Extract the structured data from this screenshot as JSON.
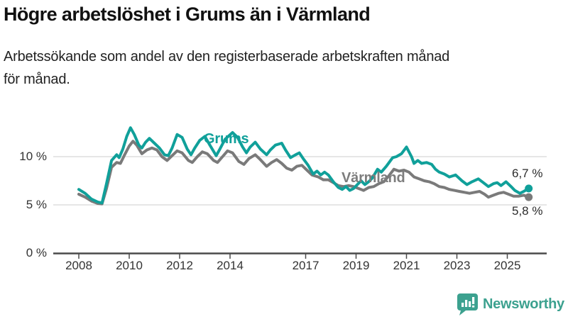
{
  "header": {
    "title": "Högre arbetslöshet i Grums än i Värmland",
    "subtitle_lines": [
      "Arbetssökande som andel av den registerbaserade arbetskraften månad",
      "för månad."
    ]
  },
  "chart_data": {
    "type": "line",
    "unit": "%",
    "grid": "horizontal",
    "legend_position": "inline-labels",
    "xlim": [
      2007.0,
      2026.6
    ],
    "ylim": [
      0,
      14.2
    ],
    "x_ticks": [
      2008,
      2010,
      2012,
      2014,
      2017,
      2019,
      2021,
      2023,
      2025
    ],
    "y_ticks": [
      {
        "value": 10,
        "label": "10 %"
      },
      {
        "value": 5,
        "label": "5 %"
      },
      {
        "value": 0,
        "label": "0 %"
      }
    ],
    "series": [
      {
        "name": "Värmland",
        "color": "#7a7a7a",
        "end_value": 5.8,
        "end_label": "5,8 %",
        "points": [
          [
            2008.0,
            6.1
          ],
          [
            2008.25,
            5.8
          ],
          [
            2008.5,
            5.4
          ],
          [
            2008.75,
            5.15
          ],
          [
            2008.92,
            5.1
          ],
          [
            2009.1,
            6.7
          ],
          [
            2009.3,
            8.9
          ],
          [
            2009.5,
            9.4
          ],
          [
            2009.65,
            9.3
          ],
          [
            2009.8,
            10.1
          ],
          [
            2010.0,
            11.1
          ],
          [
            2010.15,
            11.6
          ],
          [
            2010.3,
            11.2
          ],
          [
            2010.5,
            10.3
          ],
          [
            2010.7,
            10.7
          ],
          [
            2010.9,
            10.9
          ],
          [
            2011.1,
            10.7
          ],
          [
            2011.3,
            10.0
          ],
          [
            2011.5,
            9.6
          ],
          [
            2011.7,
            10.1
          ],
          [
            2011.9,
            10.6
          ],
          [
            2012.1,
            10.4
          ],
          [
            2012.35,
            9.6
          ],
          [
            2012.5,
            9.4
          ],
          [
            2012.7,
            10.0
          ],
          [
            2012.9,
            10.5
          ],
          [
            2013.1,
            10.3
          ],
          [
            2013.35,
            9.6
          ],
          [
            2013.5,
            9.4
          ],
          [
            2013.7,
            10.0
          ],
          [
            2013.9,
            10.6
          ],
          [
            2014.1,
            10.4
          ],
          [
            2014.35,
            9.5
          ],
          [
            2014.55,
            9.2
          ],
          [
            2014.75,
            9.8
          ],
          [
            2015.0,
            10.2
          ],
          [
            2015.2,
            9.7
          ],
          [
            2015.45,
            9.0
          ],
          [
            2015.65,
            9.4
          ],
          [
            2015.85,
            9.7
          ],
          [
            2016.05,
            9.3
          ],
          [
            2016.25,
            8.8
          ],
          [
            2016.45,
            8.6
          ],
          [
            2016.65,
            9.0
          ],
          [
            2016.85,
            9.1
          ],
          [
            2017.05,
            8.6
          ],
          [
            2017.25,
            8.1
          ],
          [
            2017.5,
            7.9
          ],
          [
            2017.7,
            7.6
          ],
          [
            2017.9,
            7.6
          ],
          [
            2018.1,
            7.3
          ],
          [
            2018.3,
            7.0
          ],
          [
            2018.5,
            6.9
          ],
          [
            2018.7,
            7.0
          ],
          [
            2018.9,
            6.9
          ],
          [
            2019.1,
            6.7
          ],
          [
            2019.3,
            6.5
          ],
          [
            2019.5,
            6.8
          ],
          [
            2019.7,
            6.9
          ],
          [
            2019.9,
            7.2
          ],
          [
            2020.1,
            7.4
          ],
          [
            2020.3,
            8.0
          ],
          [
            2020.5,
            8.7
          ],
          [
            2020.7,
            8.5
          ],
          [
            2020.9,
            8.6
          ],
          [
            2021.1,
            8.4
          ],
          [
            2021.3,
            7.9
          ],
          [
            2021.5,
            7.7
          ],
          [
            2021.7,
            7.5
          ],
          [
            2021.9,
            7.4
          ],
          [
            2022.1,
            7.2
          ],
          [
            2022.3,
            6.9
          ],
          [
            2022.5,
            6.8
          ],
          [
            2022.7,
            6.6
          ],
          [
            2022.9,
            6.5
          ],
          [
            2023.1,
            6.4
          ],
          [
            2023.3,
            6.3
          ],
          [
            2023.5,
            6.2
          ],
          [
            2023.7,
            6.3
          ],
          [
            2023.9,
            6.4
          ],
          [
            2024.1,
            6.1
          ],
          [
            2024.25,
            5.8
          ],
          [
            2024.45,
            6.0
          ],
          [
            2024.65,
            6.2
          ],
          [
            2024.85,
            6.3
          ],
          [
            2025.05,
            6.1
          ],
          [
            2025.25,
            5.9
          ],
          [
            2025.45,
            5.9
          ],
          [
            2025.65,
            6.0
          ],
          [
            2025.85,
            5.8
          ]
        ]
      },
      {
        "name": "Grums",
        "color": "#10a09a",
        "end_value": 6.7,
        "end_label": "6,7 %",
        "points": [
          [
            2008.0,
            6.6
          ],
          [
            2008.25,
            6.2
          ],
          [
            2008.5,
            5.6
          ],
          [
            2008.75,
            5.3
          ],
          [
            2008.92,
            5.2
          ],
          [
            2009.1,
            7.2
          ],
          [
            2009.3,
            9.6
          ],
          [
            2009.5,
            10.2
          ],
          [
            2009.6,
            9.9
          ],
          [
            2009.75,
            10.8
          ],
          [
            2009.9,
            12.1
          ],
          [
            2010.05,
            13.0
          ],
          [
            2010.2,
            12.3
          ],
          [
            2010.38,
            11.2
          ],
          [
            2010.5,
            10.9
          ],
          [
            2010.65,
            11.5
          ],
          [
            2010.8,
            11.9
          ],
          [
            2011.0,
            11.4
          ],
          [
            2011.2,
            10.9
          ],
          [
            2011.4,
            10.2
          ],
          [
            2011.55,
            10.1
          ],
          [
            2011.7,
            10.9
          ],
          [
            2011.9,
            12.3
          ],
          [
            2012.1,
            12.0
          ],
          [
            2012.3,
            10.8
          ],
          [
            2012.45,
            10.2
          ],
          [
            2012.6,
            10.9
          ],
          [
            2012.8,
            11.7
          ],
          [
            2013.0,
            12.1
          ],
          [
            2013.2,
            11.2
          ],
          [
            2013.45,
            10.1
          ],
          [
            2013.6,
            10.8
          ],
          [
            2013.8,
            11.8
          ],
          [
            2014.1,
            12.5
          ],
          [
            2014.3,
            12.0
          ],
          [
            2014.5,
            11.0
          ],
          [
            2014.65,
            10.4
          ],
          [
            2014.8,
            11.0
          ],
          [
            2015.0,
            11.5
          ],
          [
            2015.2,
            10.8
          ],
          [
            2015.45,
            10.2
          ],
          [
            2015.6,
            10.7
          ],
          [
            2015.8,
            11.2
          ],
          [
            2016.05,
            11.4
          ],
          [
            2016.2,
            10.7
          ],
          [
            2016.4,
            9.9
          ],
          [
            2016.6,
            10.2
          ],
          [
            2016.75,
            10.4
          ],
          [
            2016.9,
            9.8
          ],
          [
            2017.1,
            9.1
          ],
          [
            2017.3,
            8.2
          ],
          [
            2017.45,
            8.5
          ],
          [
            2017.6,
            8.1
          ],
          [
            2017.75,
            8.4
          ],
          [
            2017.9,
            8.1
          ],
          [
            2018.1,
            7.4
          ],
          [
            2018.3,
            6.8
          ],
          [
            2018.45,
            6.6
          ],
          [
            2018.6,
            6.9
          ],
          [
            2018.75,
            6.5
          ],
          [
            2018.9,
            6.7
          ],
          [
            2019.05,
            7.1
          ],
          [
            2019.2,
            7.5
          ],
          [
            2019.35,
            7.1
          ],
          [
            2019.5,
            7.4
          ],
          [
            2019.65,
            7.8
          ],
          [
            2019.85,
            8.7
          ],
          [
            2020.0,
            8.4
          ],
          [
            2020.2,
            9.0
          ],
          [
            2020.45,
            9.9
          ],
          [
            2020.6,
            10.0
          ],
          [
            2020.8,
            10.3
          ],
          [
            2021.0,
            11.0
          ],
          [
            2021.2,
            10.0
          ],
          [
            2021.3,
            9.3
          ],
          [
            2021.45,
            9.6
          ],
          [
            2021.6,
            9.3
          ],
          [
            2021.8,
            9.4
          ],
          [
            2022.0,
            9.2
          ],
          [
            2022.15,
            8.7
          ],
          [
            2022.3,
            8.4
          ],
          [
            2022.5,
            8.2
          ],
          [
            2022.7,
            7.9
          ],
          [
            2022.95,
            8.1
          ],
          [
            2023.2,
            7.5
          ],
          [
            2023.4,
            7.1
          ],
          [
            2023.6,
            7.4
          ],
          [
            2023.85,
            7.7
          ],
          [
            2024.05,
            7.3
          ],
          [
            2024.25,
            6.9
          ],
          [
            2024.45,
            7.2
          ],
          [
            2024.6,
            7.3
          ],
          [
            2024.75,
            7.0
          ],
          [
            2024.95,
            7.4
          ],
          [
            2025.15,
            6.9
          ],
          [
            2025.3,
            6.5
          ],
          [
            2025.5,
            6.2
          ],
          [
            2025.65,
            6.4
          ],
          [
            2025.85,
            6.7
          ]
        ]
      }
    ]
  },
  "footer": {
    "brand": "Newsworthy",
    "icon": "bar-chart-speech-bubble-icon",
    "brand_color": "#3ca18f"
  },
  "colors": {
    "teal": "#10a09a",
    "gray": "#7a7a7a",
    "axis": "#4a4a4a",
    "grid": "#d7d7d7",
    "tick_text": "#333333"
  }
}
